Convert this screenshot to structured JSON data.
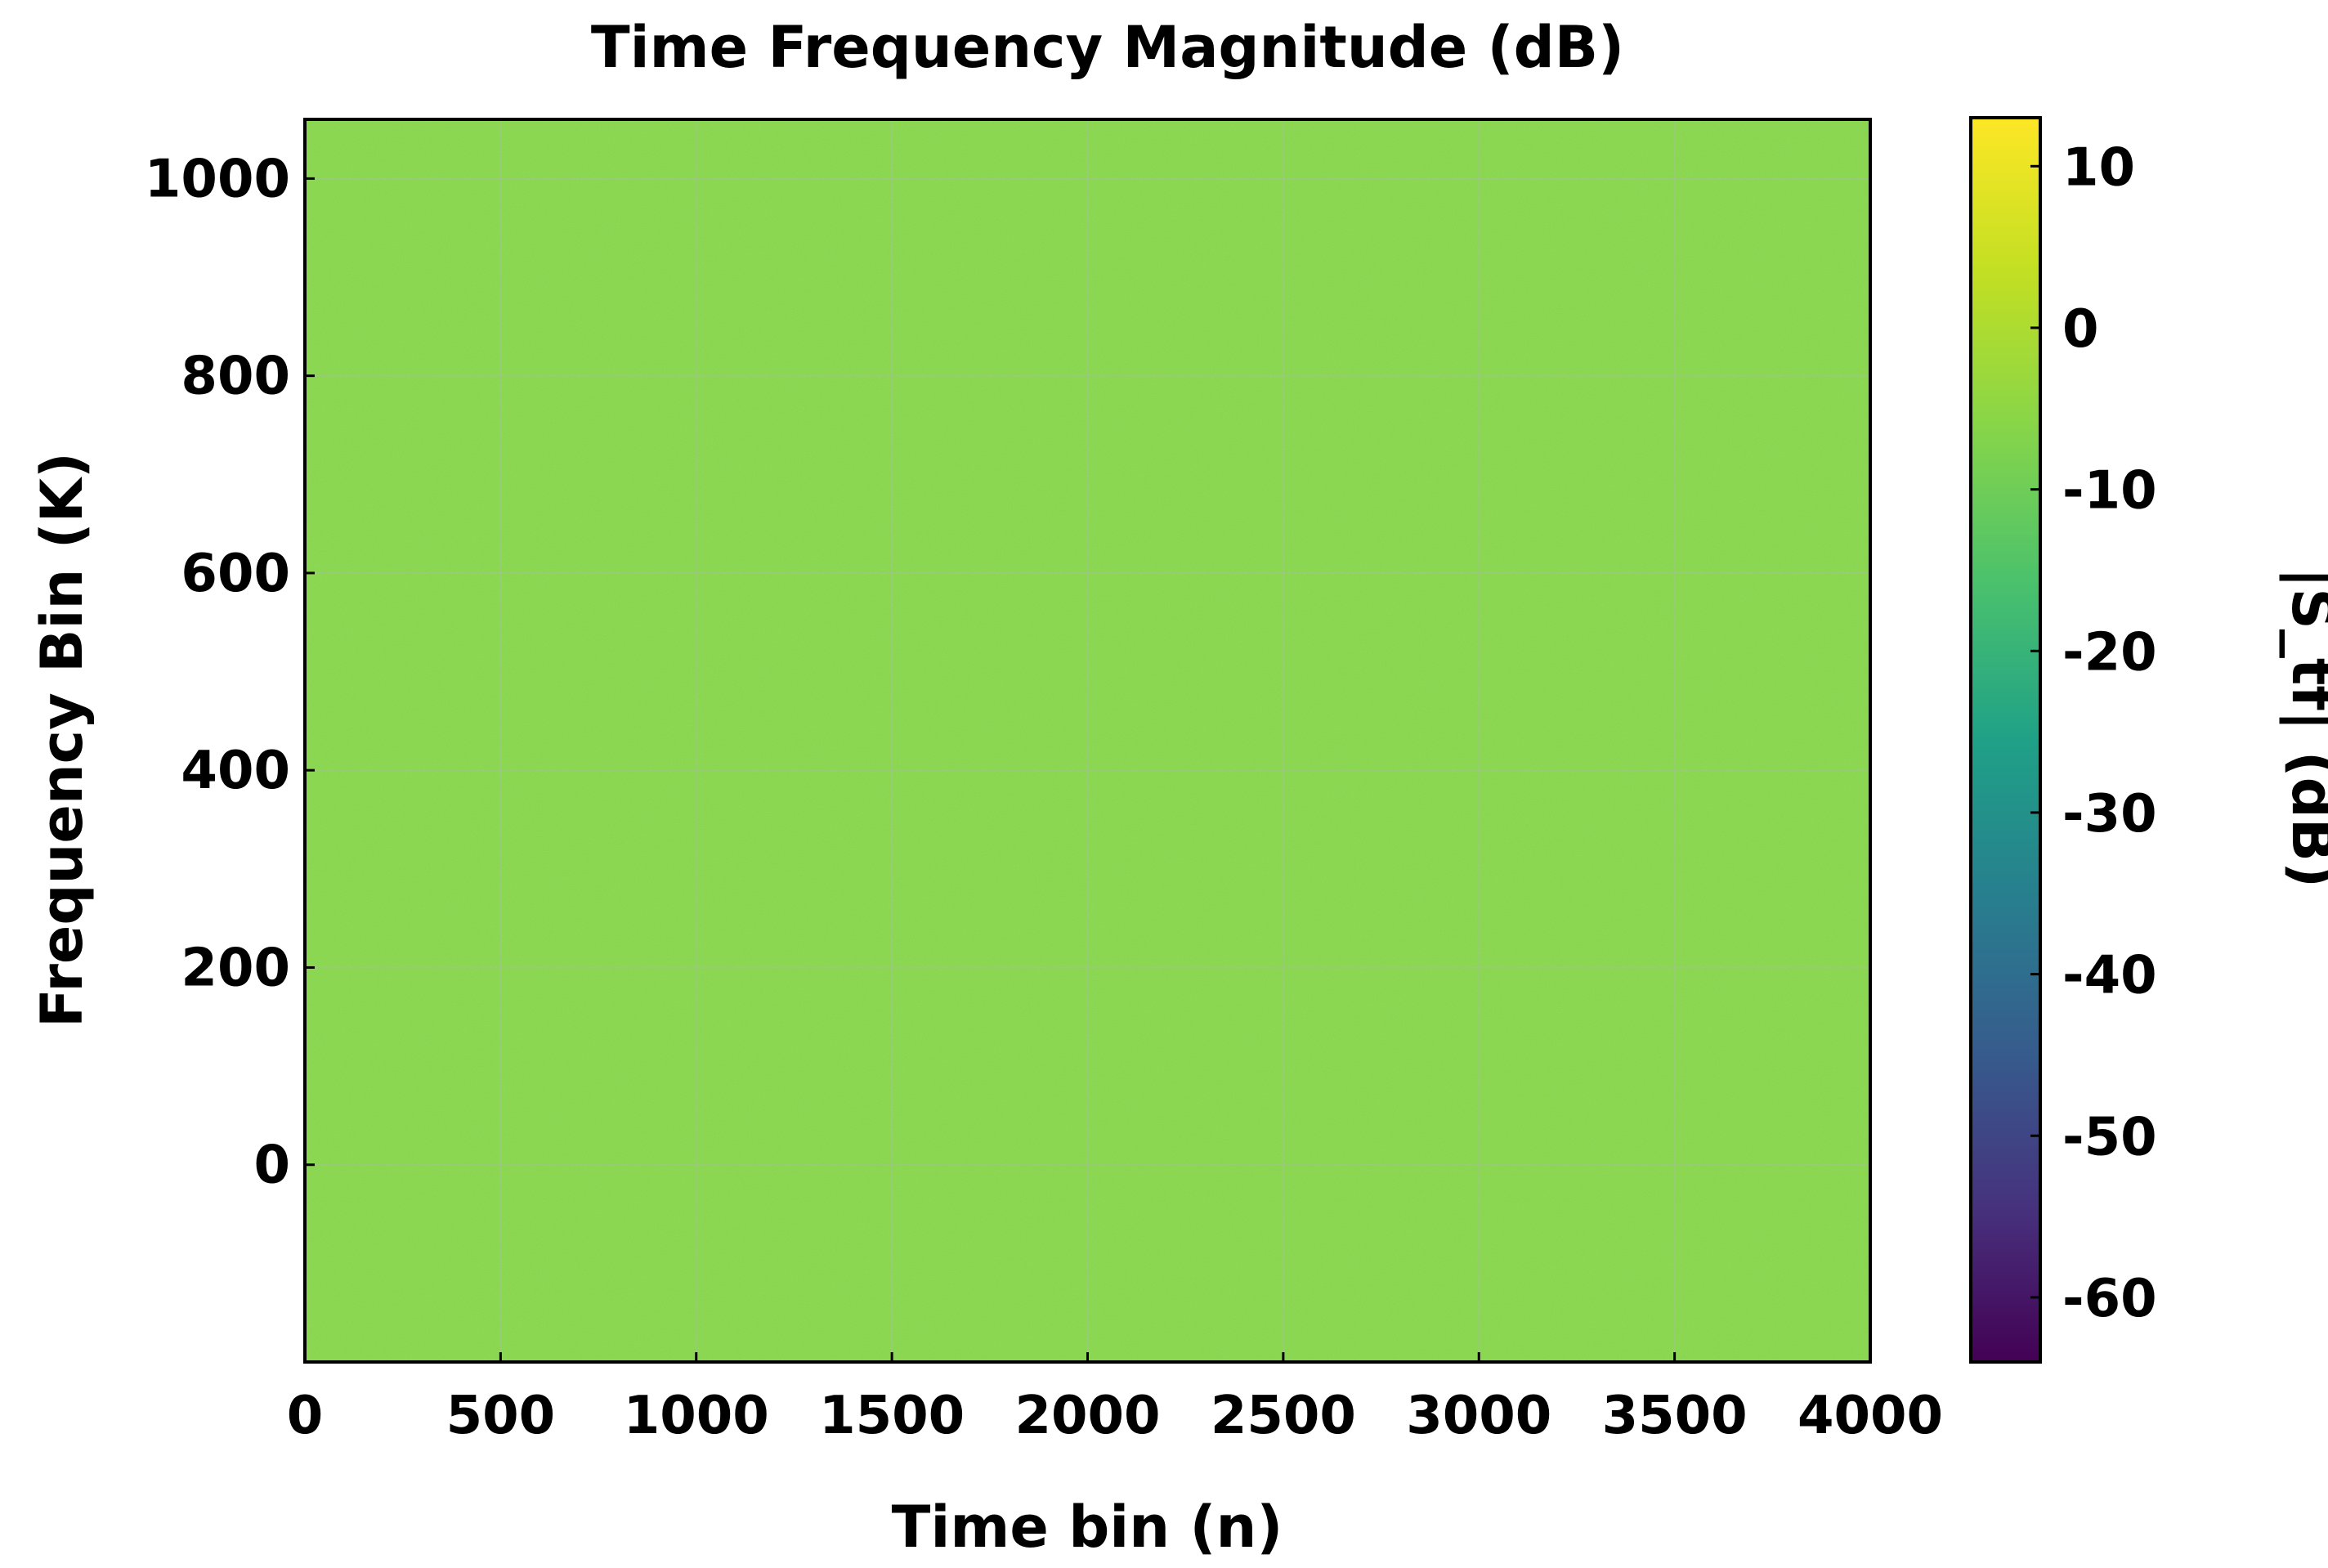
{
  "chart_data": {
    "type": "heatmap",
    "title": "Time Frequency Magnitude (dB)",
    "xlabel": "Time bin (n)",
    "ylabel": "Frequency Bin (K)",
    "xlim": [
      0,
      4000
    ],
    "ylim": [
      -200,
      1060
    ],
    "x_ticks": [
      "0",
      "500",
      "1000",
      "1500",
      "2000",
      "2500",
      "3000",
      "3500",
      "4000"
    ],
    "y_ticks": [
      "0",
      "200",
      "400",
      "600",
      "800",
      "1000"
    ],
    "grid": true,
    "colormap": "viridis",
    "fill_value_db": 0,
    "fill_color": "#86d549",
    "colorbar": {
      "label": "|S_tf| (dB)",
      "range": [
        -64,
        13
      ],
      "ticks": [
        "10",
        "0",
        "-10",
        "-20",
        "-30",
        "-40",
        "-50",
        "-60"
      ]
    }
  }
}
